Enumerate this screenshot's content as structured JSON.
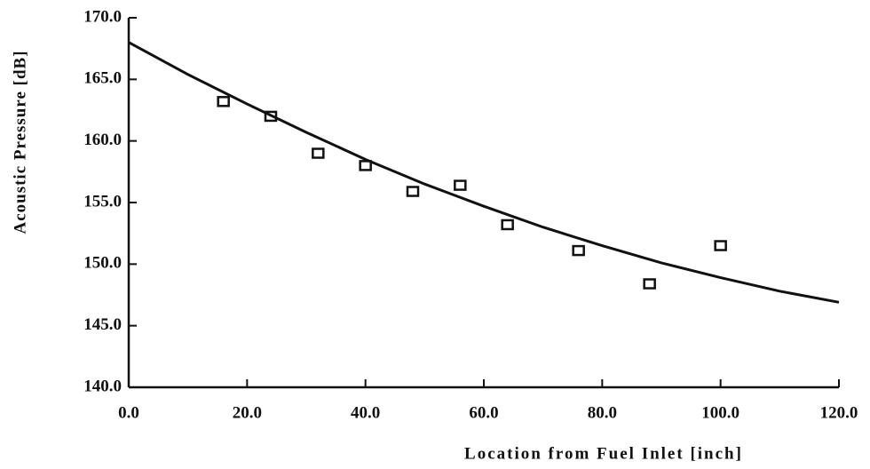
{
  "chart_data": {
    "type": "scatter",
    "xlabel": "Location from Fuel Inlet [inch]",
    "ylabel": "Acoustic Pressure [dB]",
    "xlim": [
      0,
      120
    ],
    "ylim": [
      140,
      170
    ],
    "xticks": [
      {
        "value": 0,
        "label": "0.0"
      },
      {
        "value": 20,
        "label": "20.0"
      },
      {
        "value": 40,
        "label": "40.0"
      },
      {
        "value": 60,
        "label": "60.0"
      },
      {
        "value": 80,
        "label": "80.0"
      },
      {
        "value": 100,
        "label": "100.0"
      },
      {
        "value": 120,
        "label": "120.0"
      }
    ],
    "yticks": [
      {
        "value": 140,
        "label": "140.0"
      },
      {
        "value": 145,
        "label": "145.0"
      },
      {
        "value": 150,
        "label": "150.0"
      },
      {
        "value": 155,
        "label": "155.0"
      },
      {
        "value": 160,
        "label": "160.0"
      },
      {
        "value": 165,
        "label": "165.0"
      },
      {
        "value": 170,
        "label": "170.0"
      }
    ],
    "series": [
      {
        "type": "scatter",
        "color": "#111111",
        "x": [
          16,
          24,
          32,
          40,
          48,
          56,
          64,
          76,
          88,
          100
        ],
        "values": [
          163.2,
          162.0,
          159.0,
          158.0,
          155.9,
          156.4,
          153.2,
          151.1,
          148.4,
          151.5
        ]
      },
      {
        "type": "line",
        "color": "#111111",
        "x": [
          0,
          10,
          20,
          30,
          40,
          50,
          60,
          70,
          80,
          90,
          100,
          110,
          120
        ],
        "values": [
          168.0,
          165.4,
          163.0,
          160.7,
          158.5,
          156.5,
          154.7,
          153.0,
          151.5,
          150.1,
          148.9,
          147.8,
          146.9
        ]
      }
    ]
  }
}
